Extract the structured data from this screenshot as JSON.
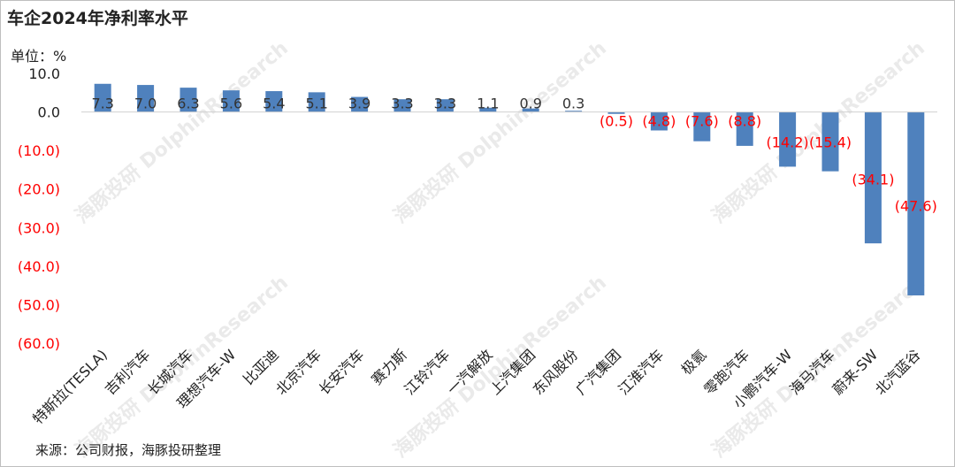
{
  "title": "车企2024年净利率水平",
  "unit_label": "单位：%",
  "source": "来源：公司财报，海豚投研整理",
  "watermark": "海豚投研 DolphinResearch",
  "colors": {
    "bar": "#4f81bd",
    "negative_label": "#ff0000",
    "positive_label": "#333333",
    "axis_text_negative": "#ff0000",
    "axis_text_positive": "#222222"
  },
  "chart_data": {
    "type": "bar",
    "title": "车企2024年净利率水平",
    "ylabel": "单位：%",
    "ylim": [
      -60,
      10
    ],
    "yticks": [
      10,
      0,
      -10,
      -20,
      -30,
      -40,
      -50,
      -60
    ],
    "ytick_labels": [
      "10.0",
      "0.0",
      "(10.0)",
      "(20.0)",
      "(30.0)",
      "(40.0)",
      "(50.0)",
      "(60.0)"
    ],
    "grid": false,
    "legend": "none",
    "categories": [
      "特斯拉(TESLA)",
      "吉利汽车",
      "长城汽车",
      "理想汽车-W",
      "比亚迪",
      "北京汽车",
      "长安汽车",
      "赛力斯",
      "江铃汽车",
      "一汽解放",
      "上汽集团",
      "东风股份",
      "广汽集团",
      "江淮汽车",
      "极氪",
      "零跑汽车",
      "小鹏汽车-W",
      "海马汽车",
      "蔚来-SW",
      "北汽蓝谷"
    ],
    "values": [
      7.3,
      7.0,
      6.3,
      5.6,
      5.4,
      5.1,
      3.9,
      3.3,
      3.3,
      1.1,
      0.9,
      0.3,
      -0.5,
      -4.8,
      -7.6,
      -8.8,
      -14.2,
      -15.4,
      -34.1,
      -47.6
    ],
    "value_labels": [
      "7.3",
      "7.0",
      "6.3",
      "5.6",
      "5.4",
      "5.1",
      "3.9",
      "3.3",
      "3.3",
      "1.1",
      "0.9",
      "0.3",
      "(0.5)",
      "(4.8)",
      "(7.6)",
      "(8.8)",
      "(14.2)",
      "(15.4)",
      "(34.1)",
      "(47.6)"
    ]
  }
}
